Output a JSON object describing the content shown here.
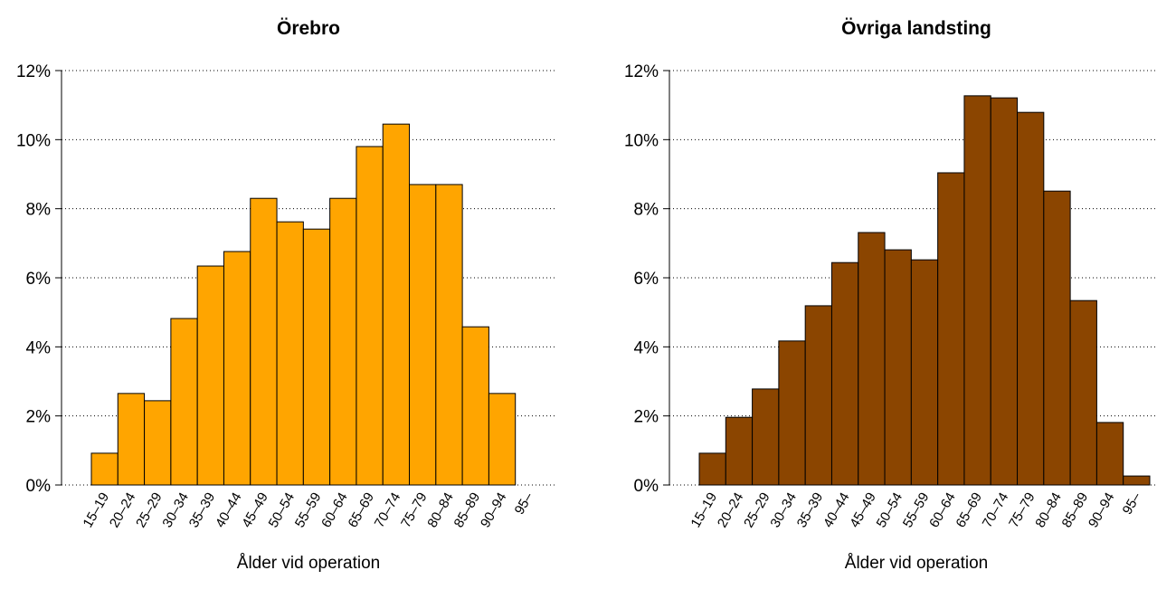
{
  "chart_data": [
    {
      "type": "bar",
      "title": "Örebro",
      "xlabel": "Ålder vid operation",
      "categories": [
        "15–19",
        "20–24",
        "25–29",
        "30–34",
        "35–39",
        "40–44",
        "45–49",
        "50–54",
        "55–59",
        "60–64",
        "65–69",
        "70–74",
        "75–79",
        "80–84",
        "85–89",
        "90–94",
        "95–"
      ],
      "values": [
        0.92,
        2.65,
        2.44,
        4.82,
        6.34,
        6.76,
        8.3,
        7.62,
        7.41,
        8.3,
        9.8,
        10.45,
        8.7,
        8.7,
        4.58,
        2.65,
        0
      ],
      "color": "#ffa500",
      "ylim": [
        0,
        12
      ],
      "yticks": [
        {
          "value": 0,
          "label": "0%"
        },
        {
          "value": 2,
          "label": "2%"
        },
        {
          "value": 4,
          "label": "4%"
        },
        {
          "value": 6,
          "label": "6%"
        },
        {
          "value": 8,
          "label": "8%"
        },
        {
          "value": 10,
          "label": "10%"
        },
        {
          "value": 12,
          "label": "12%"
        }
      ],
      "grid": true
    },
    {
      "type": "bar",
      "title": "Övriga landsting",
      "xlabel": "Ålder vid operation",
      "categories": [
        "15–19",
        "20–24",
        "25–29",
        "30–34",
        "35–39",
        "40–44",
        "45–49",
        "50–54",
        "55–59",
        "60–64",
        "65–69",
        "70–74",
        "75–79",
        "80–84",
        "85–89",
        "90–94",
        "95–"
      ],
      "values": [
        0.92,
        1.96,
        2.78,
        4.17,
        5.19,
        6.44,
        7.31,
        6.81,
        6.52,
        9.04,
        11.27,
        11.21,
        10.79,
        8.51,
        5.34,
        1.81,
        0.26
      ],
      "color": "#8b4500",
      "ylim": [
        0,
        12
      ],
      "yticks": [
        {
          "value": 0,
          "label": "0%"
        },
        {
          "value": 2,
          "label": "2%"
        },
        {
          "value": 4,
          "label": "4%"
        },
        {
          "value": 6,
          "label": "6%"
        },
        {
          "value": 8,
          "label": "8%"
        },
        {
          "value": 10,
          "label": "10%"
        },
        {
          "value": 12,
          "label": "12%"
        }
      ],
      "grid": true
    }
  ]
}
